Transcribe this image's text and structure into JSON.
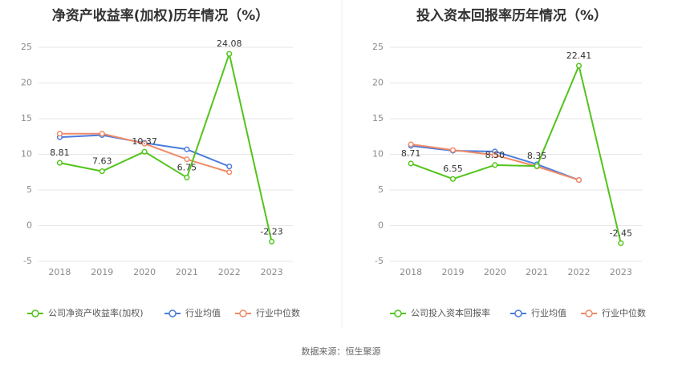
{
  "footer": {
    "source_text": "数据来源：恒生聚源"
  },
  "chart_data": [
    {
      "type": "line",
      "title": "净资产收益率(加权)历年情况（%）",
      "categories": [
        "2018",
        "2019",
        "2020",
        "2021",
        "2022",
        "2023"
      ],
      "ylim": [
        -5,
        25
      ],
      "yticks": [
        -5,
        0,
        5,
        10,
        15,
        20,
        25
      ],
      "grid": true,
      "legend_position": "bottom",
      "series": [
        {
          "name": "公司净资产收益率(加权)",
          "color": "#52c41a",
          "values": [
            8.81,
            7.63,
            10.37,
            6.75,
            24.08,
            -2.23
          ],
          "labels": [
            "8.81",
            "7.63",
            "10.37",
            "6.75",
            "24.08",
            "-2.23"
          ]
        },
        {
          "name": "行业均值",
          "color": "#4a7bdc",
          "values": [
            12.4,
            12.7,
            11.6,
            10.7,
            8.3,
            null
          ]
        },
        {
          "name": "行业中位数",
          "color": "#f08a68",
          "values": [
            12.9,
            12.9,
            11.5,
            9.3,
            7.5,
            null
          ]
        }
      ]
    },
    {
      "type": "line",
      "title": "投入资本回报率历年情况（%）",
      "categories": [
        "2018",
        "2019",
        "2020",
        "2021",
        "2022",
        "2023"
      ],
      "ylim": [
        -5,
        25
      ],
      "yticks": [
        -5,
        0,
        5,
        10,
        15,
        20,
        25
      ],
      "grid": true,
      "legend_position": "bottom",
      "series": [
        {
          "name": "公司投入资本回报率",
          "color": "#52c41a",
          "values": [
            8.71,
            6.55,
            8.5,
            8.35,
            22.41,
            -2.45
          ],
          "labels": [
            "8.71",
            "6.55",
            "8.50",
            "8.35",
            "22.41",
            "-2.45"
          ]
        },
        {
          "name": "行业均值",
          "color": "#4a7bdc",
          "values": [
            11.2,
            10.5,
            10.4,
            8.6,
            6.4,
            null
          ]
        },
        {
          "name": "行业中位数",
          "color": "#f08a68",
          "values": [
            11.4,
            10.6,
            9.9,
            8.3,
            6.4,
            null
          ]
        }
      ]
    }
  ]
}
